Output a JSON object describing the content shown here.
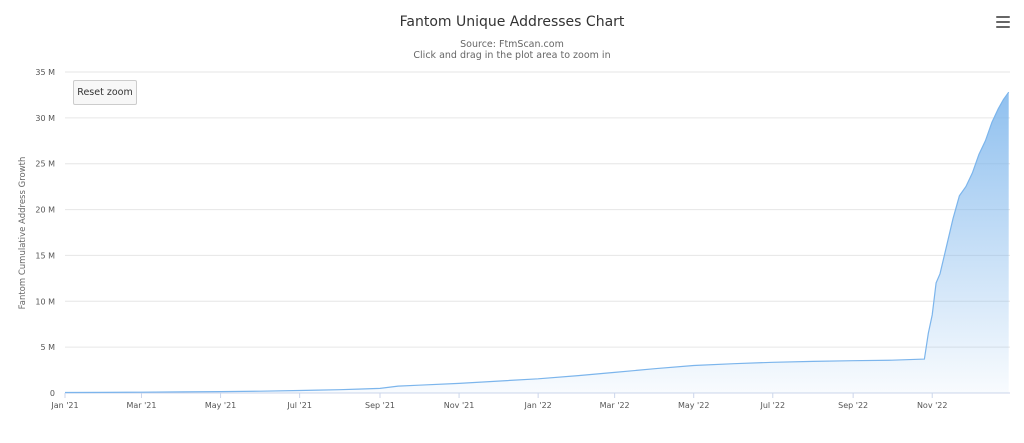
{
  "menu_icon": "hamburger-menu-icon",
  "reset_label": "Reset zoom",
  "chart_data": {
    "type": "area",
    "title": "Fantom Unique Addresses Chart",
    "subtitle": [
      "Source: FtmScan.com",
      "Click and drag in the plot area to zoom in"
    ],
    "ylabel": "Fantom Cumulative Address Growth",
    "xlabel": "",
    "ylim": [
      0,
      35000000
    ],
    "yticks": [
      "0",
      "5 M",
      "10 M",
      "15 M",
      "20 M",
      "25 M",
      "30 M",
      "35 M"
    ],
    "xticks": [
      "Jan '21",
      "Mar '21",
      "May '21",
      "Jul '21",
      "Sep '21",
      "Nov '21",
      "Jan '22",
      "Mar '22",
      "May '22",
      "Jul '22",
      "Sep '22",
      "Nov '22"
    ],
    "grid": true,
    "color": "#7cb5ec",
    "x": [
      "2021-01-01",
      "2021-02-01",
      "2021-03-01",
      "2021-04-01",
      "2021-05-01",
      "2021-06-01",
      "2021-07-01",
      "2021-07-15",
      "2021-08-01",
      "2021-08-15",
      "2021-09-01",
      "2021-09-15",
      "2021-10-01",
      "2021-11-01",
      "2021-12-01",
      "2022-01-01",
      "2022-02-01",
      "2022-03-01",
      "2022-04-01",
      "2022-05-01",
      "2022-06-01",
      "2022-07-01",
      "2022-08-01",
      "2022-09-01",
      "2022-10-01",
      "2022-10-26",
      "2022-10-29",
      "2022-11-01",
      "2022-11-04",
      "2022-11-07",
      "2022-11-12",
      "2022-11-17",
      "2022-11-22",
      "2022-11-27",
      "2022-12-02",
      "2022-12-07",
      "2022-12-12",
      "2022-12-17",
      "2022-12-22",
      "2022-12-26",
      "2022-12-30"
    ],
    "values": [
      50000,
      70000,
      90000,
      120000,
      150000,
      200000,
      270000,
      320000,
      360000,
      420000,
      500000,
      750000,
      850000,
      1050000,
      1300000,
      1550000,
      1900000,
      2250000,
      2650000,
      3000000,
      3200000,
      3350000,
      3450000,
      3520000,
      3580000,
      3700000,
      6500000,
      8500000,
      12000000,
      13000000,
      16000000,
      19000000,
      21500000,
      22500000,
      24000000,
      26000000,
      27500000,
      29500000,
      31000000,
      32000000,
      32800000
    ]
  }
}
